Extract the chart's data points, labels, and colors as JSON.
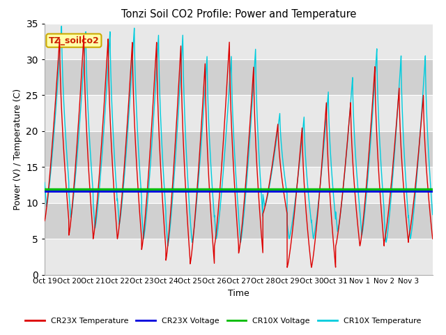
{
  "title": "Tonzi Soil CO2 Profile: Power and Temperature",
  "xlabel": "Time",
  "ylabel": "Power (V) / Temperature (C)",
  "ylim": [
    0,
    35
  ],
  "yticks": [
    0,
    5,
    10,
    15,
    20,
    25,
    30,
    35
  ],
  "xtick_labels": [
    "Oct 19",
    "Oct 20",
    "Oct 21",
    "Oct 22",
    "Oct 23",
    "Oct 24",
    "Oct 25",
    "Oct 26",
    "Oct 27",
    "Oct 28",
    "Oct 29",
    "Oct 30",
    "Oct 31",
    "Nov 1",
    "Nov 2",
    "Nov 3"
  ],
  "cr23x_voltage": 11.65,
  "cr10x_voltage": 11.9,
  "cr23x_voltage_color": "#0000dd",
  "cr10x_voltage_color": "#00bb00",
  "cr23x_temp_color": "#dd0000",
  "cr10x_temp_color": "#00ccdd",
  "annotation_text": "TZ_soilco2",
  "annotation_bg": "#ffffaa",
  "annotation_border": "#ccaa00",
  "plot_bg_light": "#e8e8e8",
  "plot_bg_dark": "#d0d0d0",
  "legend_colors": [
    "#dd0000",
    "#0000dd",
    "#00bb00",
    "#00ccdd"
  ],
  "legend_labels": [
    "CR23X Temperature",
    "CR23X Voltage",
    "CR10X Voltage",
    "CR10X Temperature"
  ],
  "n_days": 16,
  "cr23x_max": [
    33.0,
    33.5,
    33.0,
    32.5,
    32.5,
    32.0,
    29.5,
    32.5,
    29.0,
    21.0,
    20.5,
    24.0,
    24.0,
    29.0,
    26.0,
    25.0
  ],
  "cr23x_min": [
    7.5,
    5.5,
    5.0,
    5.0,
    3.5,
    2.0,
    1.5,
    4.0,
    3.0,
    8.5,
    1.0,
    1.0,
    4.0,
    4.0,
    4.5,
    5.0
  ],
  "cr10x_max": [
    34.8,
    34.0,
    34.0,
    34.5,
    33.5,
    33.5,
    30.5,
    30.5,
    31.5,
    22.5,
    22.0,
    25.5,
    27.5,
    31.5,
    30.5,
    30.5
  ],
  "cr10x_min": [
    9.5,
    8.0,
    6.5,
    7.0,
    5.0,
    4.0,
    4.5,
    5.0,
    4.5,
    9.5,
    5.0,
    5.0,
    6.0,
    5.5,
    4.5,
    5.0
  ],
  "cr10x_phase_lead": 0.08
}
